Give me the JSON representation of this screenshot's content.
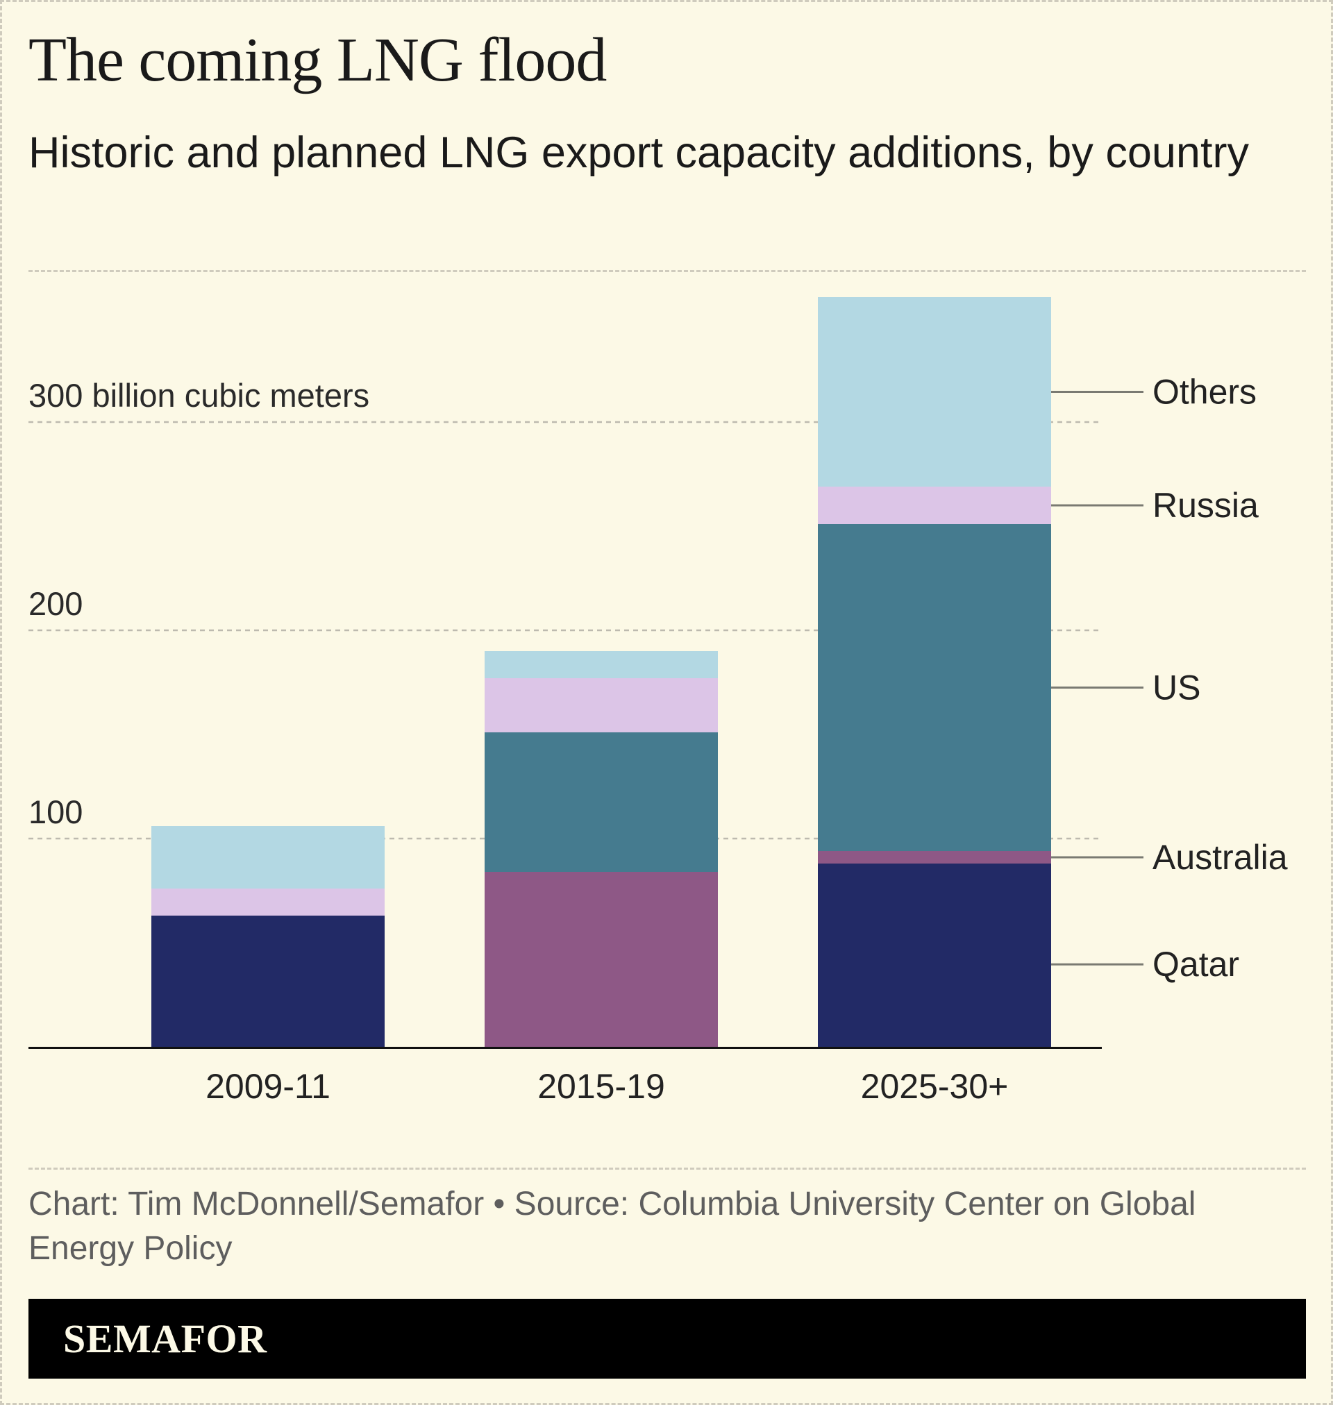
{
  "title": "The coming LNG flood",
  "subtitle": "Historic and planned LNG export capacity additions, by country",
  "credit": "Chart: Tim McDonnell/Semafor • Source: Columbia University Center on Global Energy Policy",
  "brand": "SEMAFOR",
  "chart_data": {
    "type": "bar",
    "stacked": true,
    "title": "The coming LNG flood",
    "subtitle": "Historic and planned LNG export capacity additions, by country",
    "xlabel": "",
    "ylabel": "billion cubic meters",
    "ylim": [
      0,
      360
    ],
    "yticks": [
      100,
      200,
      300
    ],
    "ytick_labels": [
      "100",
      "200",
      "300 billion cubic meters"
    ],
    "grid": true,
    "categories": [
      "2009-11",
      "2015-19",
      "2025-30+"
    ],
    "series": [
      {
        "name": "Qatar",
        "color": "#222a66",
        "values": [
          63,
          0,
          88
        ]
      },
      {
        "name": "Australia",
        "color": "#8e5886",
        "values": [
          0,
          84,
          6
        ]
      },
      {
        "name": "US",
        "color": "#457b8f",
        "values": [
          0,
          67,
          157
        ]
      },
      {
        "name": "Russia",
        "color": "#dcc5e7",
        "values": [
          13,
          26,
          18
        ]
      },
      {
        "name": "Others",
        "color": "#b3d8e3",
        "values": [
          30,
          13,
          91
        ]
      }
    ],
    "legend": {
      "placement": "right of last bar",
      "labels": [
        "Others",
        "Russia",
        "US",
        "Australia",
        "Qatar"
      ]
    }
  }
}
